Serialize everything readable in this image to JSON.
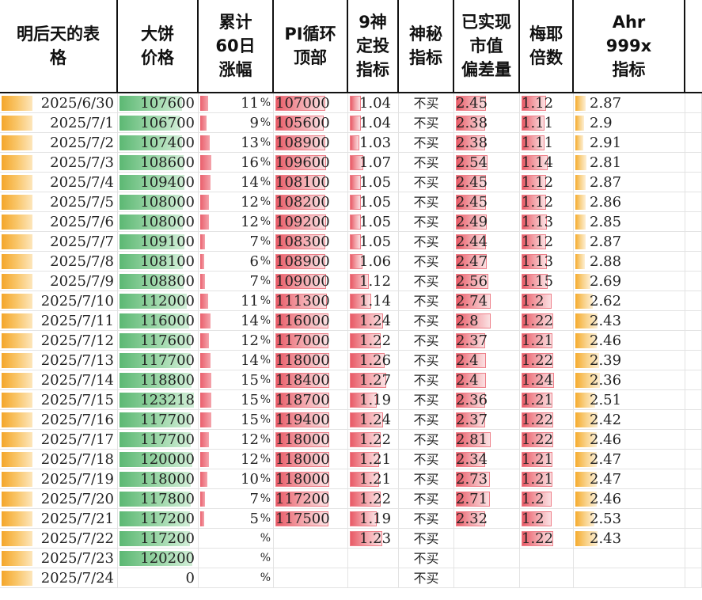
{
  "headers": {
    "date": "明后天的表\n格",
    "price": "大饼\n价格",
    "rise": "累计\n60日\n涨幅",
    "pi": "PI循环\n顶部",
    "nine": "9神\n定投\n指标",
    "mystery": "神秘\n指标",
    "mvrv": "已实现\n市值\n偏差量",
    "mayer": "梅耶\n倍数",
    "ahr": "Ahr\n999x\n指标"
  },
  "colors": {
    "date_bar": "#f4a62a",
    "price_bar": "#5cb873",
    "red_bar": "#e85a66",
    "ahr_bar": "#f5ab2e"
  },
  "rows": [
    {
      "date": "2025/6/30",
      "price": "107600",
      "price_level": 0.84,
      "rise": "11",
      "rise_level": 0.33,
      "pi": "107000",
      "pi_level": 0.92,
      "nine": "1.04",
      "nine_level": 0.23,
      "mystery": "不买",
      "mvrv": "2.45",
      "mvrv_level": 0.64,
      "mayer": "1.12",
      "mayer_level": 0.7,
      "ahr": "2.87",
      "ahr_level": 0.35
    },
    {
      "date": "2025/7/1",
      "price": "106700",
      "price_level": 0.82,
      "rise": "9",
      "rise_level": 0.27,
      "pi": "105600",
      "pi_level": 0.9,
      "nine": "1.04",
      "nine_level": 0.23,
      "mystery": "不买",
      "mvrv": "2.38",
      "mvrv_level": 0.62,
      "mayer": "1.11",
      "mayer_level": 0.66,
      "ahr": "2.9",
      "ahr_level": 0.3
    },
    {
      "date": "2025/7/2",
      "price": "107400",
      "price_level": 0.84,
      "rise": "13",
      "rise_level": 0.39,
      "pi": "108900",
      "pi_level": 0.93,
      "nine": "1.03",
      "nine_level": 0.2,
      "mystery": "不买",
      "mvrv": "2.38",
      "mvrv_level": 0.62,
      "mayer": "1.11",
      "mayer_level": 0.66,
      "ahr": "2.91",
      "ahr_level": 0.29
    },
    {
      "date": "2025/7/3",
      "price": "108600",
      "price_level": 0.86,
      "rise": "16",
      "rise_level": 0.48,
      "pi": "109600",
      "pi_level": 0.94,
      "nine": "1.07",
      "nine_level": 0.28,
      "mystery": "不买",
      "mvrv": "2.54",
      "mvrv_level": 0.67,
      "mayer": "1.14",
      "mayer_level": 0.74,
      "ahr": "2.81",
      "ahr_level": 0.4
    },
    {
      "date": "2025/7/4",
      "price": "109400",
      "price_level": 0.87,
      "rise": "14",
      "rise_level": 0.42,
      "pi": "108100",
      "pi_level": 0.93,
      "nine": "1.05",
      "nine_level": 0.24,
      "mystery": "不买",
      "mvrv": "2.45",
      "mvrv_level": 0.64,
      "mayer": "1.12",
      "mayer_level": 0.7,
      "ahr": "2.87",
      "ahr_level": 0.35
    },
    {
      "date": "2025/7/5",
      "price": "108000",
      "price_level": 0.85,
      "rise": "12",
      "rise_level": 0.36,
      "pi": "108200",
      "pi_level": 0.93,
      "nine": "1.05",
      "nine_level": 0.24,
      "mystery": "不买",
      "mvrv": "2.45",
      "mvrv_level": 0.64,
      "mayer": "1.12",
      "mayer_level": 0.7,
      "ahr": "2.86",
      "ahr_level": 0.36
    },
    {
      "date": "2025/7/6",
      "price": "108000",
      "price_level": 0.85,
      "rise": "12",
      "rise_level": 0.36,
      "pi": "109200",
      "pi_level": 0.94,
      "nine": "1.05",
      "nine_level": 0.24,
      "mystery": "不买",
      "mvrv": "2.49",
      "mvrv_level": 0.65,
      "mayer": "1.13",
      "mayer_level": 0.72,
      "ahr": "2.85",
      "ahr_level": 0.37
    },
    {
      "date": "2025/7/7",
      "price": "109100",
      "price_level": 0.87,
      "rise": "7",
      "rise_level": 0.21,
      "pi": "108300",
      "pi_level": 0.93,
      "nine": "1.05",
      "nine_level": 0.24,
      "mystery": "不买",
      "mvrv": "2.44",
      "mvrv_level": 0.64,
      "mayer": "1.12",
      "mayer_level": 0.7,
      "ahr": "2.87",
      "ahr_level": 0.35
    },
    {
      "date": "2025/7/8",
      "price": "108100",
      "price_level": 0.85,
      "rise": "6",
      "rise_level": 0.18,
      "pi": "108900",
      "pi_level": 0.93,
      "nine": "1.06",
      "nine_level": 0.26,
      "mystery": "不买",
      "mvrv": "2.47",
      "mvrv_level": 0.65,
      "mayer": "1.13",
      "mayer_level": 0.72,
      "ahr": "2.88",
      "ahr_level": 0.33
    },
    {
      "date": "2025/7/9",
      "price": "108800",
      "price_level": 0.86,
      "rise": "7",
      "rise_level": 0.21,
      "pi": "109000",
      "pi_level": 0.94,
      "nine": "1.12",
      "nine_level": 0.4,
      "mystery": "不买",
      "mvrv": "2.56",
      "mvrv_level": 0.68,
      "mayer": "1.15",
      "mayer_level": 0.76,
      "ahr": "2.69",
      "ahr_level": 0.52
    },
    {
      "date": "2025/7/10",
      "price": "112000",
      "price_level": 0.9,
      "rise": "11",
      "rise_level": 0.33,
      "pi": "111300",
      "pi_level": 0.96,
      "nine": "1.14",
      "nine_level": 0.45,
      "mystery": "不买",
      "mvrv": "2.74",
      "mvrv_level": 0.73,
      "mayer": "1.2",
      "mayer_level": 0.86,
      "ahr": "2.62",
      "ahr_level": 0.6
    },
    {
      "date": "2025/7/11",
      "price": "116000",
      "price_level": 0.94,
      "rise": "14",
      "rise_level": 0.42,
      "pi": "116000",
      "pi_level": 0.99,
      "nine": "1.24",
      "nine_level": 0.7,
      "mystery": "不买",
      "mvrv": "2.8",
      "mvrv_level": 0.74,
      "mayer": "1.22",
      "mayer_level": 0.9,
      "ahr": "2.43",
      "ahr_level": 0.78
    },
    {
      "date": "2025/7/12",
      "price": "117600",
      "price_level": 0.96,
      "rise": "12",
      "rise_level": 0.36,
      "pi": "117000",
      "pi_level": 0.99,
      "nine": "1.22",
      "nine_level": 0.65,
      "mystery": "不买",
      "mvrv": "2.37",
      "mvrv_level": 0.62,
      "mayer": "1.21",
      "mayer_level": 0.88,
      "ahr": "2.46",
      "ahr_level": 0.75
    },
    {
      "date": "2025/7/13",
      "price": "117700",
      "price_level": 0.96,
      "rise": "14",
      "rise_level": 0.42,
      "pi": "118000",
      "pi_level": 1.0,
      "nine": "1.26",
      "nine_level": 0.74,
      "mystery": "不买",
      "mvrv": "2.4",
      "mvrv_level": 0.63,
      "mayer": "1.22",
      "mayer_level": 0.9,
      "ahr": "2.39",
      "ahr_level": 0.82
    },
    {
      "date": "2025/7/14",
      "price": "118800",
      "price_level": 0.97,
      "rise": "15",
      "rise_level": 0.45,
      "pi": "118400",
      "pi_level": 1.0,
      "nine": "1.27",
      "nine_level": 0.76,
      "mystery": "不买",
      "mvrv": "2.4",
      "mvrv_level": 0.63,
      "mayer": "1.24",
      "mayer_level": 0.94,
      "ahr": "2.36",
      "ahr_level": 0.85
    },
    {
      "date": "2025/7/15",
      "price": "123218",
      "price_level": 1.0,
      "rise": "15",
      "rise_level": 0.45,
      "pi": "118700",
      "pi_level": 1.0,
      "nine": "1.19",
      "nine_level": 0.57,
      "mystery": "不买",
      "mvrv": "2.36",
      "mvrv_level": 0.62,
      "mayer": "1.21",
      "mayer_level": 0.88,
      "ahr": "2.51",
      "ahr_level": 0.7
    },
    {
      "date": "2025/7/16",
      "price": "117700",
      "price_level": 0.96,
      "rise": "15",
      "rise_level": 0.45,
      "pi": "119400",
      "pi_level": 1.0,
      "nine": "1.24",
      "nine_level": 0.7,
      "mystery": "不买",
      "mvrv": "2.37",
      "mvrv_level": 0.62,
      "mayer": "1.22",
      "mayer_level": 0.9,
      "ahr": "2.42",
      "ahr_level": 0.79
    },
    {
      "date": "2025/7/17",
      "price": "117700",
      "price_level": 0.96,
      "rise": "12",
      "rise_level": 0.36,
      "pi": "118000",
      "pi_level": 1.0,
      "nine": "1.22",
      "nine_level": 0.65,
      "mystery": "不买",
      "mvrv": "2.81",
      "mvrv_level": 0.74,
      "mayer": "1.22",
      "mayer_level": 0.9,
      "ahr": "2.46",
      "ahr_level": 0.75
    },
    {
      "date": "2025/7/18",
      "price": "120000",
      "price_level": 0.98,
      "rise": "12",
      "rise_level": 0.36,
      "pi": "118000",
      "pi_level": 1.0,
      "nine": "1.21",
      "nine_level": 0.62,
      "mystery": "不买",
      "mvrv": "2.34",
      "mvrv_level": 0.61,
      "mayer": "1.21",
      "mayer_level": 0.88,
      "ahr": "2.47",
      "ahr_level": 0.74
    },
    {
      "date": "2025/7/19",
      "price": "118000",
      "price_level": 0.96,
      "rise": "10",
      "rise_level": 0.3,
      "pi": "118000",
      "pi_level": 1.0,
      "nine": "1.21",
      "nine_level": 0.62,
      "mystery": "不买",
      "mvrv": "2.73",
      "mvrv_level": 0.72,
      "mayer": "1.21",
      "mayer_level": 0.88,
      "ahr": "2.47",
      "ahr_level": 0.74
    },
    {
      "date": "2025/7/20",
      "price": "117800",
      "price_level": 0.96,
      "rise": "7",
      "rise_level": 0.21,
      "pi": "117200",
      "pi_level": 0.99,
      "nine": "1.22",
      "nine_level": 0.65,
      "mystery": "不买",
      "mvrv": "2.71",
      "mvrv_level": 0.72,
      "mayer": "1.2",
      "mayer_level": 0.86,
      "ahr": "2.46",
      "ahr_level": 0.75
    },
    {
      "date": "2025/7/21",
      "price": "117200",
      "price_level": 0.95,
      "rise": "5",
      "rise_level": 0.15,
      "pi": "117500",
      "pi_level": 0.99,
      "nine": "1.19",
      "nine_level": 0.57,
      "mystery": "不买",
      "mvrv": "2.32",
      "mvrv_level": 0.61,
      "mayer": "1.2",
      "mayer_level": 0.86,
      "ahr": "2.53",
      "ahr_level": 0.68
    },
    {
      "date": "2025/7/22",
      "price": "117200",
      "price_level": 0.95,
      "rise": "",
      "rise_level": 0,
      "pi": "",
      "pi_level": 0,
      "nine": "1.23",
      "nine_level": 0.68,
      "mystery": "不买",
      "mvrv": "",
      "mvrv_level": 0,
      "mayer": "1.22",
      "mayer_level": 0.9,
      "ahr": "2.43",
      "ahr_level": 0.78
    },
    {
      "date": "2025/7/23",
      "price": "120200",
      "price_level": 0.98,
      "rise": "",
      "rise_level": 0,
      "pi": "",
      "pi_level": 0,
      "nine": "",
      "nine_level": 0,
      "mystery": "不买",
      "mvrv": "",
      "mvrv_level": 0,
      "mayer": "",
      "mayer_level": 0,
      "ahr": "",
      "ahr_level": 0
    },
    {
      "date": "2025/7/24",
      "price": "0",
      "price_level": 0,
      "rise": "",
      "rise_level": 0,
      "pi": "",
      "pi_level": 0,
      "nine": "",
      "nine_level": 0,
      "mystery": "不买",
      "mvrv": "",
      "mvrv_level": 0,
      "mayer": "",
      "mayer_level": 0,
      "ahr": "",
      "ahr_level": 0
    }
  ],
  "percent_sign": "%"
}
